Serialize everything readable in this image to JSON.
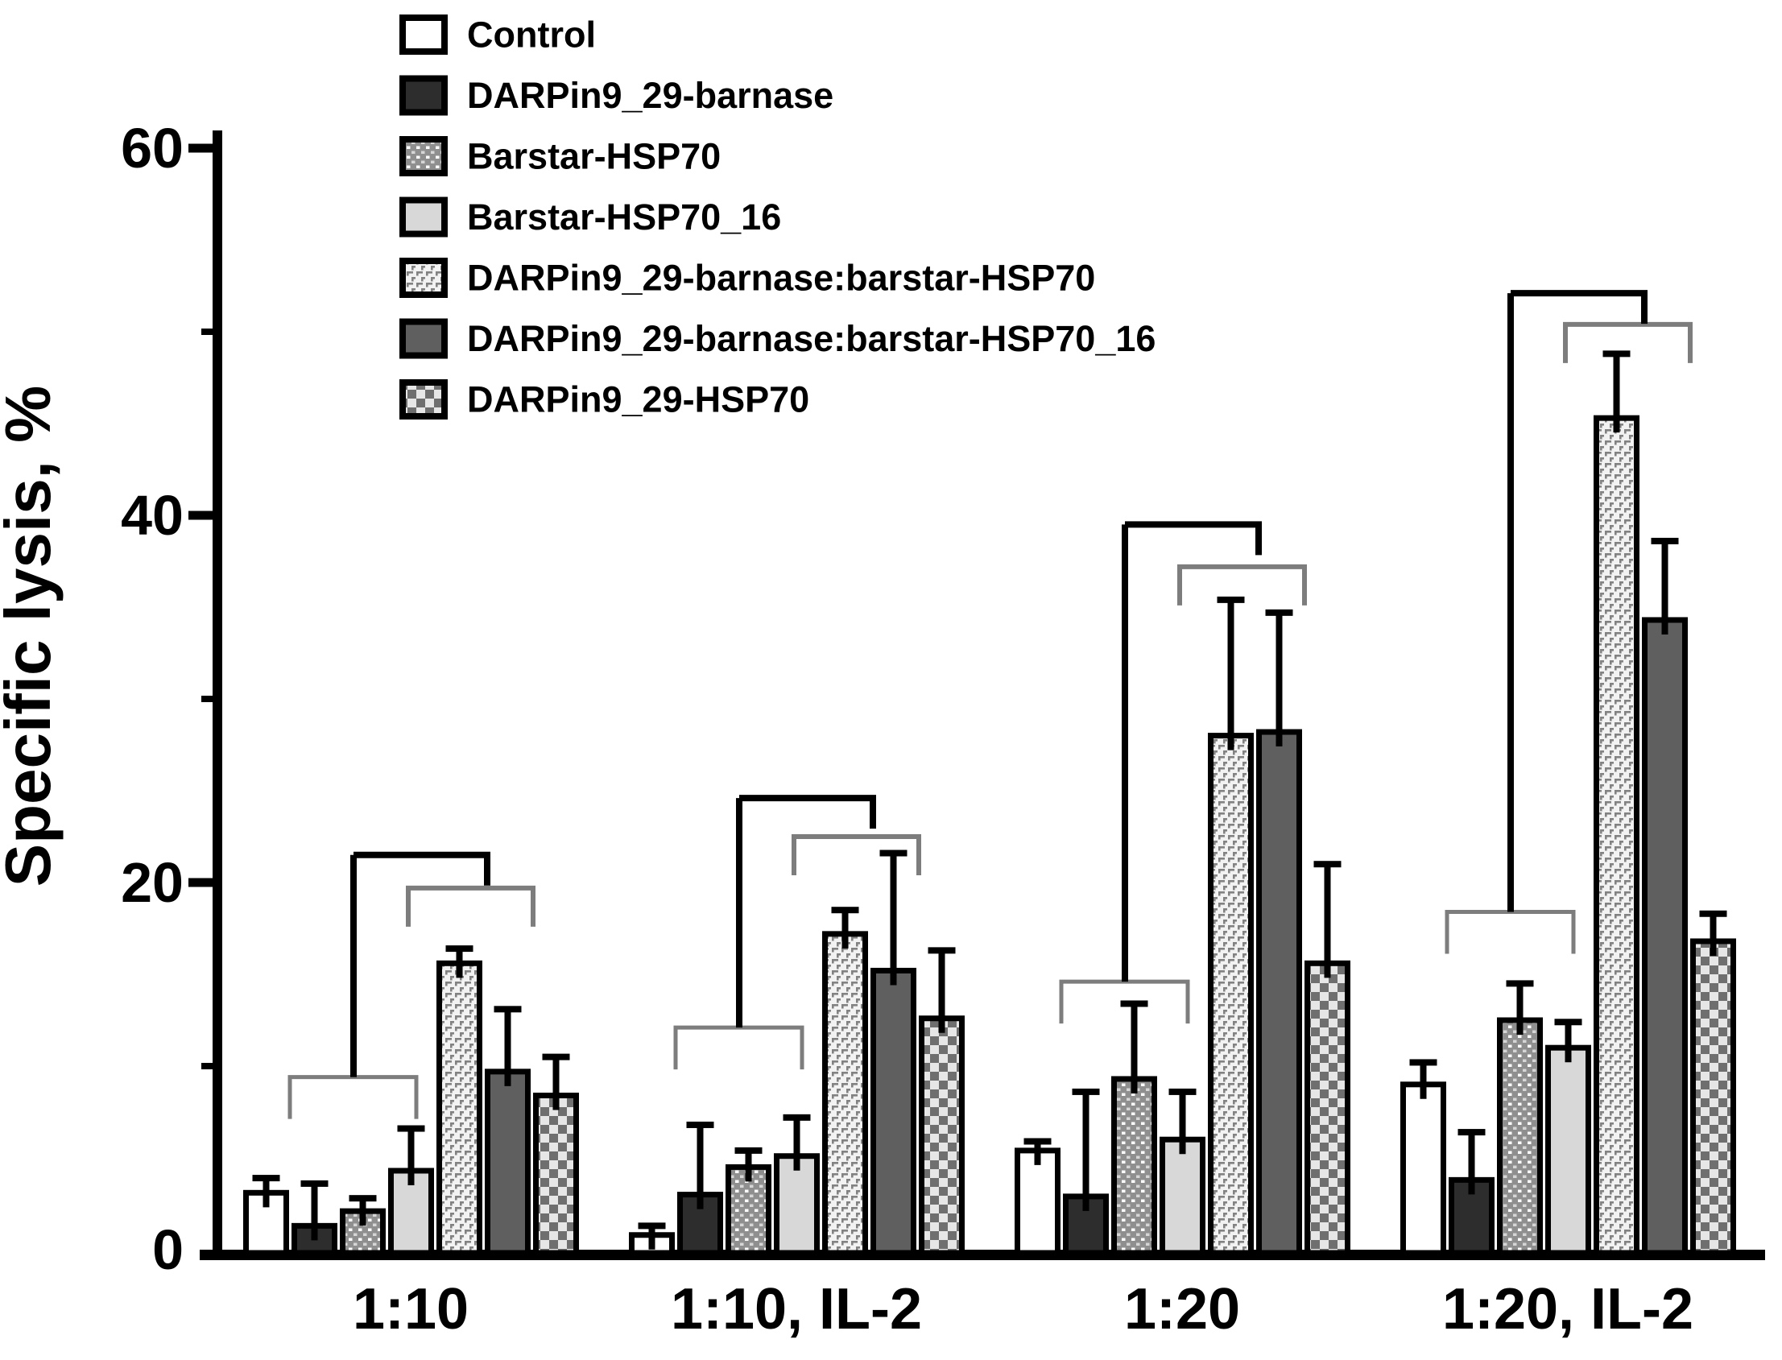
{
  "chart_data": {
    "type": "bar",
    "title": "",
    "xlabel": "",
    "ylabel": "Specific lysis, %",
    "ylim": [
      0,
      60
    ],
    "yticks": [
      0,
      20,
      40,
      60
    ],
    "yticks_minor": [
      10,
      30,
      50
    ],
    "grid": false,
    "legend_position": "upper-left",
    "categories": [
      "1:10",
      "1:10, IL-2",
      "1:20",
      "1:20, IL-2"
    ],
    "series": [
      {
        "name": "Control",
        "fill": "control",
        "values": [
          3.1,
          0.8,
          5.4,
          9.0
        ],
        "errors": [
          0.8,
          0.5,
          0.5,
          1.2
        ]
      },
      {
        "name": "DARPin9_29-barnase",
        "fill": "dark_solid",
        "values": [
          1.3,
          3.0,
          2.9,
          3.8
        ],
        "errors": [
          2.3,
          3.8,
          5.7,
          2.6
        ]
      },
      {
        "name": "Barstar-HSP70",
        "fill": "white_dots",
        "values": [
          2.1,
          4.5,
          9.3,
          12.5
        ],
        "errors": [
          0.7,
          0.9,
          4.1,
          2.0
        ]
      },
      {
        "name": "Barstar-HSP70_16",
        "fill": "light_solid",
        "values": [
          4.3,
          5.1,
          6.0,
          11.0
        ],
        "errors": [
          2.3,
          2.1,
          2.6,
          1.4
        ]
      },
      {
        "name": "DARPin9_29-barnase:barstar-HSP70",
        "fill": "brick_texture",
        "values": [
          15.6,
          17.2,
          28.0,
          45.3
        ],
        "errors": [
          0.8,
          1.3,
          7.4,
          3.5
        ]
      },
      {
        "name": "DARPin9_29-barnase:barstar-HSP70_16",
        "fill": "mid_solid",
        "values": [
          9.7,
          15.2,
          28.2,
          34.3
        ],
        "errors": [
          3.4,
          6.4,
          6.5,
          4.3
        ]
      },
      {
        "name": "DARPin9_29-HSP70",
        "fill": "checkerboard",
        "values": [
          8.4,
          12.6,
          15.6,
          16.8
        ],
        "errors": [
          2.1,
          3.7,
          5.4,
          1.5
        ]
      }
    ],
    "significance_brackets": [
      {
        "category": "1:10",
        "cluster_a_bars": [
          0,
          3
        ],
        "cluster_b_bars": [
          4,
          6
        ],
        "cluster_a_level": 9.4,
        "cluster_b_level": 19.7,
        "connector_level": 21.5
      },
      {
        "category": "1:10, IL-2",
        "cluster_a_bars": [
          0,
          3
        ],
        "cluster_b_bars": [
          4,
          6
        ],
        "cluster_a_level": 12.1,
        "cluster_b_level": 22.5,
        "connector_level": 24.6
      },
      {
        "category": "1:20",
        "cluster_a_bars": [
          0,
          3
        ],
        "cluster_b_bars": [
          4,
          6
        ],
        "cluster_a_level": 14.6,
        "cluster_b_level": 37.2,
        "connector_level": 39.5
      },
      {
        "category": "1:20, IL-2",
        "cluster_a_bars": [
          0,
          3
        ],
        "cluster_b_bars": [
          4,
          6
        ],
        "cluster_a_level": 18.4,
        "cluster_b_level": 50.4,
        "connector_level": 52.1
      }
    ]
  },
  "colors": {
    "background": "#ffffff",
    "ink": "#000000",
    "control_fill": "#ffffff",
    "dark_bar": "#2d2d2d",
    "mid_bar": "#5f5f5f",
    "light_bar": "#d8d8d8",
    "dots_base": "#8f8f8f",
    "dots_bright": "#ffffff",
    "dots_faint": "#d6d6d6",
    "brick_base": "#f2f2f2",
    "brick_mark": "#828282",
    "checker_dark": "#6f6f6f",
    "checker_light": "#e6e6e6",
    "bracket_gray": "#7d7d7d"
  }
}
